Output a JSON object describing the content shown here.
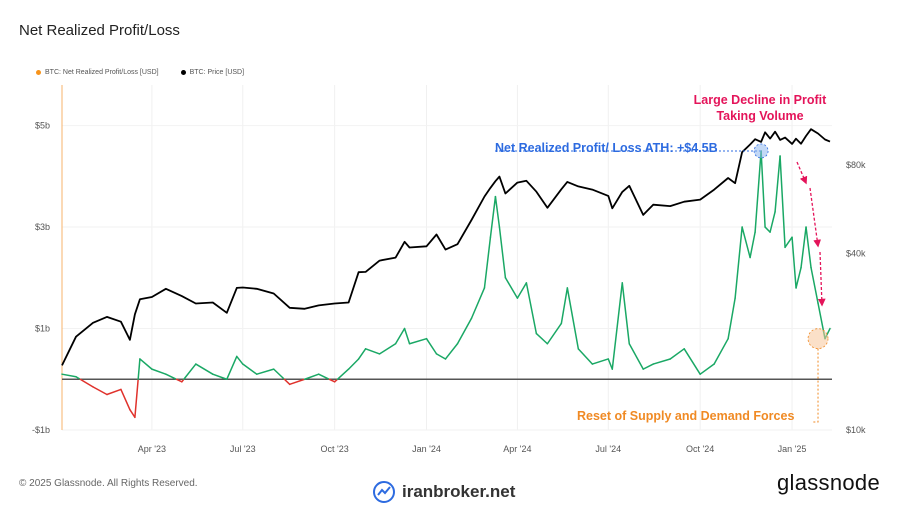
{
  "title": "Net Realized Profit/Loss",
  "legend": [
    {
      "label": "BTC: Net Realized Profit/Loss [USD]",
      "color": "#f7931a"
    },
    {
      "label": "BTC: Price [USD]",
      "color": "#000000"
    }
  ],
  "footer": {
    "copyright": "© 2025 Glassnode. All Rights Reserved.",
    "watermark": "iranbroker.net",
    "brand": "glassnode"
  },
  "annotations": {
    "decline": [
      "Large Decline in Profit",
      "Taking Volume"
    ],
    "ath": "Net Realized Profit/ Loss ATH: +$4.5B",
    "reset": "Reset of Supply and Demand Forces"
  },
  "colors": {
    "profit": "#1aa865",
    "loss": "#e0322c",
    "price": "#000000",
    "zero_line": "#555555",
    "decline": "#e4145a",
    "ath": "#2d6be0",
    "reset": "#f08a24"
  },
  "chart_data": {
    "type": "line",
    "x_ticks": [
      "Apr '23",
      "Jul '23",
      "Oct '23",
      "Jan '24",
      "Apr '24",
      "Jul '24",
      "Oct '24",
      "Jan '25"
    ],
    "x_tick_dates": [
      "2023-04-01",
      "2023-07-01",
      "2023-10-01",
      "2024-01-01",
      "2024-04-01",
      "2024-07-01",
      "2024-10-01",
      "2025-01-01"
    ],
    "x_range": [
      "2023-01-01",
      "2025-02-10"
    ],
    "y_left": {
      "ticks": [
        "-$1b",
        "$1b",
        "$3b",
        "$5b"
      ],
      "values": [
        -1,
        1,
        3,
        5
      ],
      "range": [
        -1,
        5.8
      ],
      "unit": "USD billions"
    },
    "y_right": {
      "ticks": [
        "$10k",
        "$40k",
        "$80k"
      ],
      "values": [
        10000,
        40000,
        80000
      ],
      "scale": "log",
      "range": [
        10000,
        150000
      ]
    },
    "series": [
      {
        "name": "BTC: Net Realized Profit/Loss [USD]",
        "axis": "left",
        "x": [
          "2023-01-01",
          "2023-01-15",
          "2023-02-01",
          "2023-02-15",
          "2023-03-01",
          "2023-03-10",
          "2023-03-15",
          "2023-03-20",
          "2023-04-01",
          "2023-04-15",
          "2023-05-01",
          "2023-05-15",
          "2023-06-01",
          "2023-06-15",
          "2023-06-25",
          "2023-07-01",
          "2023-07-15",
          "2023-08-01",
          "2023-08-17",
          "2023-09-01",
          "2023-09-15",
          "2023-10-01",
          "2023-10-15",
          "2023-10-25",
          "2023-11-01",
          "2023-11-15",
          "2023-12-01",
          "2023-12-10",
          "2023-12-15",
          "2024-01-01",
          "2024-01-11",
          "2024-01-20",
          "2024-02-01",
          "2024-02-15",
          "2024-02-28",
          "2024-03-05",
          "2024-03-10",
          "2024-03-14",
          "2024-03-20",
          "2024-04-01",
          "2024-04-10",
          "2024-04-20",
          "2024-05-01",
          "2024-05-15",
          "2024-05-21",
          "2024-06-01",
          "2024-06-15",
          "2024-07-01",
          "2024-07-05",
          "2024-07-15",
          "2024-07-22",
          "2024-08-05",
          "2024-08-15",
          "2024-09-01",
          "2024-09-15",
          "2024-10-01",
          "2024-10-15",
          "2024-10-29",
          "2024-11-05",
          "2024-11-12",
          "2024-11-20",
          "2024-11-25",
          "2024-12-01",
          "2024-12-05",
          "2024-12-10",
          "2024-12-15",
          "2024-12-20",
          "2024-12-25",
          "2025-01-01",
          "2025-01-05",
          "2025-01-10",
          "2025-01-15",
          "2025-01-20",
          "2025-01-27",
          "2025-02-03",
          "2025-02-08"
        ],
        "y": [
          0.1,
          0.05,
          -0.15,
          -0.3,
          -0.2,
          -0.6,
          -0.75,
          0.4,
          0.2,
          0.1,
          -0.05,
          0.3,
          0.1,
          0.0,
          0.45,
          0.3,
          0.1,
          0.2,
          -0.1,
          0.0,
          0.1,
          -0.05,
          0.2,
          0.4,
          0.6,
          0.5,
          0.7,
          1.0,
          0.7,
          0.8,
          0.5,
          0.4,
          0.7,
          1.2,
          1.8,
          2.8,
          3.6,
          3.0,
          2.0,
          1.6,
          1.9,
          0.9,
          0.7,
          1.1,
          1.8,
          0.6,
          0.3,
          0.4,
          0.2,
          1.9,
          0.7,
          0.2,
          0.3,
          0.4,
          0.6,
          0.1,
          0.3,
          0.8,
          1.6,
          3.0,
          2.4,
          2.9,
          4.5,
          3.0,
          2.9,
          3.3,
          4.4,
          2.6,
          2.8,
          1.8,
          2.2,
          3.0,
          2.2,
          1.5,
          0.8,
          1.0
        ]
      },
      {
        "name": "BTC: Price [USD]",
        "axis": "right",
        "x": [
          "2023-01-01",
          "2023-01-15",
          "2023-02-01",
          "2023-02-15",
          "2023-03-01",
          "2023-03-10",
          "2023-03-15",
          "2023-03-20",
          "2023-04-01",
          "2023-04-15",
          "2023-05-01",
          "2023-05-15",
          "2023-06-01",
          "2023-06-15",
          "2023-06-25",
          "2023-07-01",
          "2023-07-15",
          "2023-08-01",
          "2023-08-17",
          "2023-09-01",
          "2023-09-15",
          "2023-10-01",
          "2023-10-15",
          "2023-10-25",
          "2023-11-01",
          "2023-11-15",
          "2023-12-01",
          "2023-12-10",
          "2023-12-15",
          "2024-01-01",
          "2024-01-11",
          "2024-01-20",
          "2024-02-01",
          "2024-02-15",
          "2024-02-28",
          "2024-03-05",
          "2024-03-10",
          "2024-03-14",
          "2024-03-20",
          "2024-04-01",
          "2024-04-10",
          "2024-04-20",
          "2024-05-01",
          "2024-05-15",
          "2024-05-21",
          "2024-06-01",
          "2024-06-15",
          "2024-07-01",
          "2024-07-05",
          "2024-07-15",
          "2024-07-22",
          "2024-08-05",
          "2024-08-15",
          "2024-09-01",
          "2024-09-15",
          "2024-10-01",
          "2024-10-15",
          "2024-10-29",
          "2024-11-05",
          "2024-11-12",
          "2024-11-20",
          "2024-11-25",
          "2024-12-01",
          "2024-12-05",
          "2024-12-10",
          "2024-12-15",
          "2024-12-20",
          "2024-12-25",
          "2025-01-01",
          "2025-01-05",
          "2025-01-10",
          "2025-01-15",
          "2025-01-20",
          "2025-01-27",
          "2025-02-03",
          "2025-02-08"
        ],
        "y": [
          16600,
          20800,
          23200,
          24300,
          23400,
          20300,
          24800,
          27900,
          28400,
          30300,
          28600,
          27000,
          27200,
          25100,
          30500,
          30600,
          30300,
          29200,
          26100,
          25900,
          26600,
          27000,
          27200,
          34500,
          34600,
          37800,
          38700,
          43800,
          41900,
          42300,
          46400,
          41200,
          43000,
          52000,
          62500,
          66900,
          70500,
          73100,
          64000,
          69700,
          70700,
          64900,
          57200,
          66200,
          70100,
          67700,
          66000,
          62800,
          57000,
          64800,
          68000,
          54100,
          58600,
          58000,
          60000,
          61000,
          66000,
          72300,
          69400,
          88500,
          94000,
          98000,
          96000,
          103500,
          98500,
          104000,
          97500,
          99300,
          94500,
          98400,
          94600,
          100500,
          106000,
          102500,
          97800,
          96200
        ]
      }
    ]
  }
}
